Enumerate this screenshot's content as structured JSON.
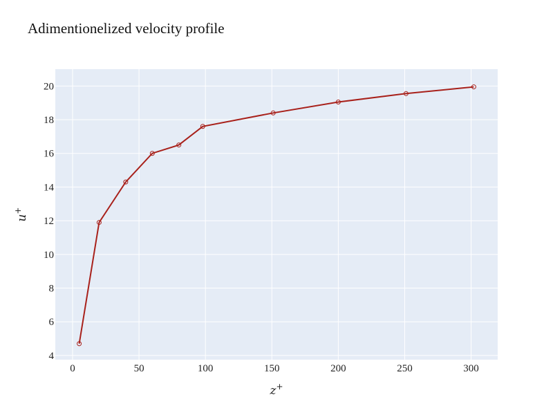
{
  "chart_data": {
    "type": "line",
    "title": "Adimentionelized velocity profile",
    "xlabel": "z",
    "xlabel_sup": "+",
    "ylabel": "u",
    "ylabel_sup": "+",
    "xlim": [
      -13,
      320
    ],
    "ylim": [
      3.75,
      21
    ],
    "x_ticks": [
      0,
      50,
      100,
      150,
      200,
      250,
      300
    ],
    "y_ticks": [
      4,
      6,
      8,
      10,
      12,
      14,
      16,
      18,
      20
    ],
    "grid": true,
    "series": [
      {
        "x": [
          5,
          20,
          40,
          60,
          80,
          98,
          151,
          200,
          251,
          302
        ],
        "values": [
          4.7,
          11.9,
          14.3,
          16.0,
          16.5,
          17.6,
          18.4,
          19.05,
          19.55,
          19.95
        ]
      }
    ],
    "colors": {
      "plot_bg": "#e5ecf6",
      "grid": "#ffffff",
      "line": "#a8201a",
      "marker_stroke": "#a8201a"
    }
  }
}
